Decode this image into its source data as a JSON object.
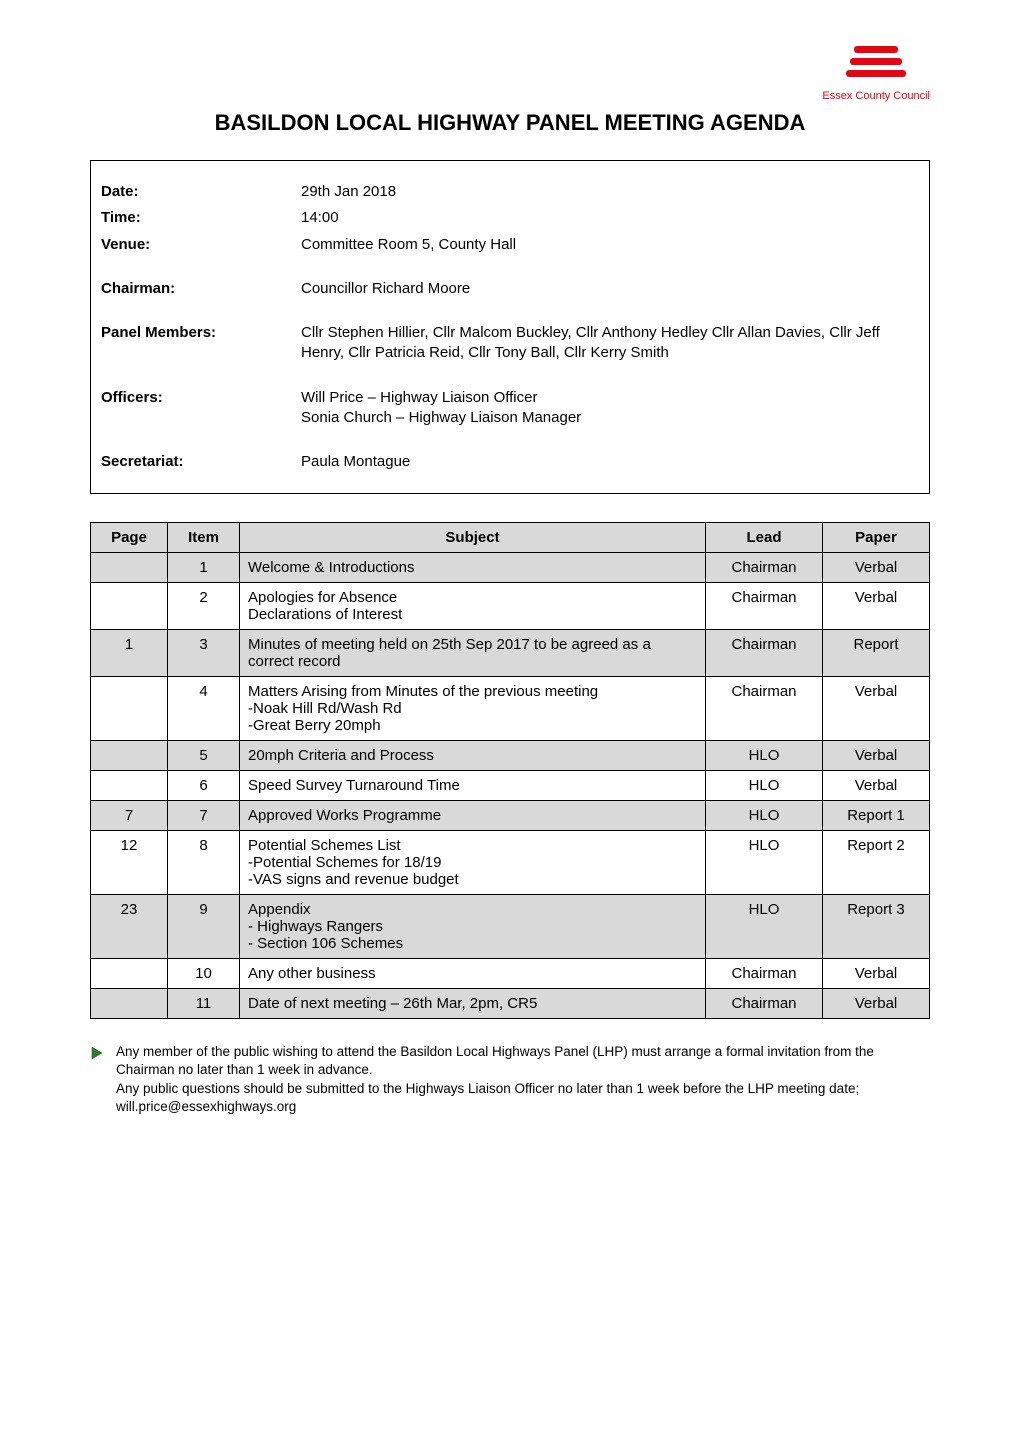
{
  "logo": {
    "bar_color": "#e30613",
    "text_color": "#e30613",
    "text": "Essex County Council"
  },
  "title": "BASILDON LOCAL HIGHWAY PANEL MEETING AGENDA",
  "info": {
    "date_label": "Date:",
    "date_value": "29th Jan 2018",
    "time_label": "Time:",
    "time_value": "14:00",
    "venue_label": "Venue:",
    "venue_value": "Committee Room 5, County Hall",
    "chairman_label": "Chairman:",
    "chairman_value": "Councillor Richard Moore",
    "panel_label": "Panel Members:",
    "panel_value": "Cllr Stephen Hillier, Cllr Malcom Buckley, Cllr Anthony Hedley Cllr Allan Davies, Cllr Jeff Henry, Cllr Patricia Reid, Cllr Tony Ball, Cllr Kerry Smith",
    "officers_label": "Officers:",
    "officers_value": "Will Price – Highway Liaison Officer\nSonia Church – Highway Liaison Manager",
    "secretariat_label": "Secretariat:",
    "secretariat_value": "Paula Montague"
  },
  "agenda": {
    "headers": {
      "page": "Page",
      "item": "Item",
      "subject": "Subject",
      "lead": "Lead",
      "paper": "Paper"
    },
    "header_bg": "#d9d9d9",
    "row_shade_bg": "#d9d9d9",
    "border_color": "#000000",
    "rows": [
      {
        "page": "",
        "item": "1",
        "subject": "Welcome & Introductions",
        "lead": "Chairman",
        "paper": "Verbal",
        "shaded": true
      },
      {
        "page": "",
        "item": "2",
        "subject": "Apologies for Absence\nDeclarations of Interest",
        "lead": "Chairman",
        "paper": "Verbal",
        "shaded": false
      },
      {
        "page": "1",
        "item": "3",
        "subject": "Minutes of meeting held on 25th Sep 2017 to be agreed as a correct record",
        "lead": "Chairman",
        "paper": "Report",
        "shaded": true
      },
      {
        "page": "",
        "item": "4",
        "subject": "Matters Arising from Minutes of the previous meeting\n-Noak Hill Rd/Wash Rd\n-Great Berry 20mph",
        "lead": "Chairman",
        "paper": "Verbal",
        "shaded": false
      },
      {
        "page": "",
        "item": "5",
        "subject": "20mph Criteria and Process",
        "lead": "HLO",
        "paper": "Verbal",
        "shaded": true
      },
      {
        "page": "",
        "item": "6",
        "subject": "Speed Survey Turnaround Time",
        "lead": "HLO",
        "paper": "Verbal",
        "shaded": false
      },
      {
        "page": "7",
        "item": "7",
        "subject": "Approved Works Programme",
        "lead": "HLO",
        "paper": "Report 1",
        "shaded": true
      },
      {
        "page": "12",
        "item": "8",
        "subject": "Potential Schemes List\n-Potential Schemes for 18/19\n-VAS signs and revenue budget",
        "lead": "HLO",
        "paper": "Report 2",
        "shaded": false
      },
      {
        "page": "23",
        "item": "9",
        "subject": "Appendix\n- Highways Rangers\n- Section 106 Schemes",
        "lead": "HLO",
        "paper": "Report 3",
        "shaded": true
      },
      {
        "page": "",
        "item": "10",
        "subject": "Any other business",
        "lead": "Chairman",
        "paper": "Verbal",
        "shaded": false
      },
      {
        "page": "",
        "item": "11",
        "subject": "Date of next meeting – 26th Mar, 2pm, CR5",
        "lead": "Chairman",
        "paper": "Verbal",
        "shaded": true
      }
    ]
  },
  "footnote": {
    "icon_color": "#2e7d32",
    "text": "Any member of the public wishing to attend the Basildon Local Highways Panel (LHP) must arrange a formal invitation from the Chairman no later than 1 week in advance.\nAny public questions should be submitted to the Highways Liaison Officer no later than 1 week before the LHP meeting date; will.price@essexhighways.org"
  }
}
